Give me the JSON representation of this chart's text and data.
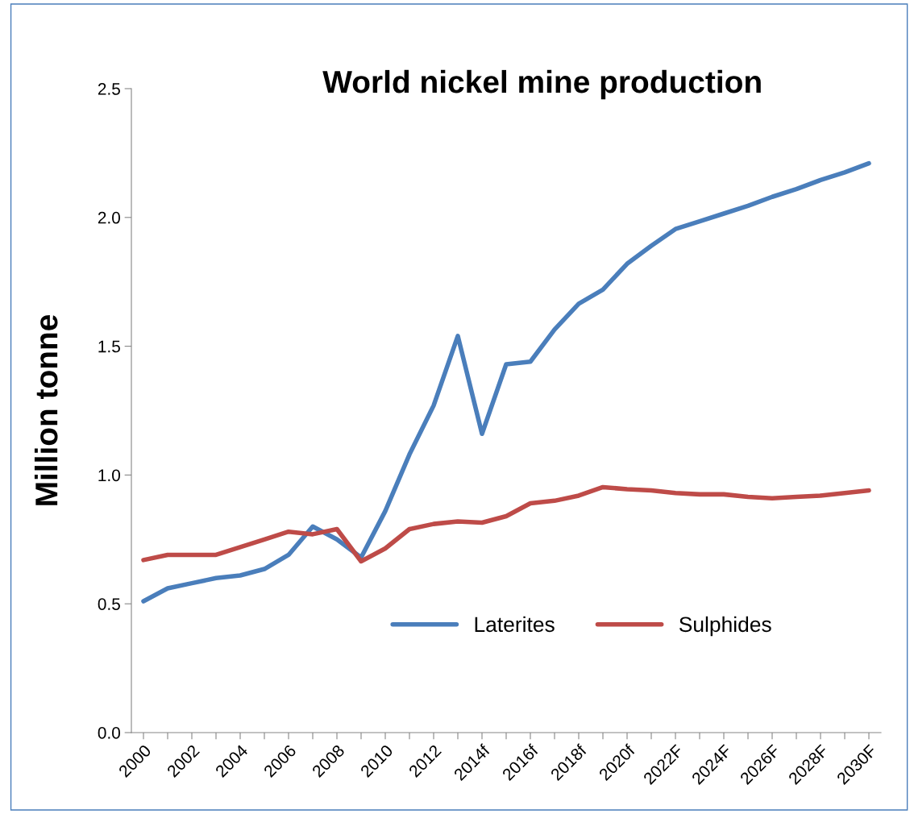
{
  "chart_data": {
    "type": "line",
    "title": "World nickel mine production",
    "ylabel": "Million tonne",
    "categories": [
      "2000",
      null,
      "2002",
      null,
      "2004",
      null,
      "2006",
      null,
      "2008",
      null,
      "2010",
      null,
      "2012",
      null,
      "2014f",
      null,
      "2016f",
      null,
      "2018f",
      null,
      "2020f",
      null,
      "2022F",
      null,
      "2024F",
      null,
      "2026F",
      null,
      "2028F",
      null,
      "2030F"
    ],
    "series": [
      {
        "name": "Laterites",
        "color": "#4a7ebb",
        "values": [
          0.51,
          0.56,
          0.58,
          0.6,
          0.61,
          0.635,
          0.69,
          0.8,
          0.75,
          0.68,
          0.86,
          1.08,
          1.27,
          1.54,
          1.16,
          1.43,
          1.44,
          1.565,
          1.665,
          1.72,
          1.82,
          1.89,
          1.955,
          1.985,
          2.015,
          2.045,
          2.08,
          2.11,
          2.145,
          2.175,
          2.21
        ]
      },
      {
        "name": "Sulphides",
        "color": "#be4b48",
        "values": [
          0.67,
          0.69,
          0.69,
          0.69,
          0.72,
          0.75,
          0.78,
          0.77,
          0.79,
          0.665,
          0.715,
          0.79,
          0.81,
          0.82,
          0.815,
          0.84,
          0.89,
          0.9,
          0.92,
          0.953,
          0.945,
          0.94,
          0.93,
          0.925,
          0.925,
          0.915,
          0.91,
          0.915,
          0.92,
          0.93,
          0.94
        ]
      }
    ],
    "ylim": [
      0,
      2.5
    ],
    "yticks": [
      {
        "value": 0,
        "label": "0.0"
      },
      {
        "value": 0.5,
        "label": "0.5"
      },
      {
        "value": 1,
        "label": "1.0"
      },
      {
        "value": 1.5,
        "label": "1.5"
      },
      {
        "value": 2,
        "label": "2.0"
      },
      {
        "value": 2.5,
        "label": "2.5"
      }
    ],
    "grid": false,
    "legend": "bottom right",
    "marker": "none",
    "line_style": "solid"
  }
}
